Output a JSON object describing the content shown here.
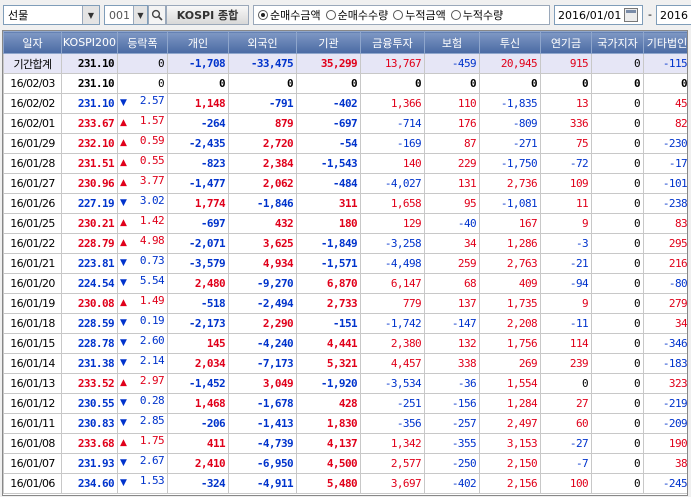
{
  "toolbar": {
    "market": "선물",
    "code": "001",
    "index_name": "KOSPI 종합",
    "radios": [
      {
        "label": "순매수금액",
        "selected": true
      },
      {
        "label": "순매수수량",
        "selected": false
      },
      {
        "label": "누적금액",
        "selected": false
      },
      {
        "label": "누적수량",
        "selected": false
      }
    ],
    "start_date": "2016/01/01",
    "range_sep": "-",
    "end_date": "2016"
  },
  "table": {
    "columns": [
      "일자",
      "KOSPI200",
      "등락폭",
      "개인",
      "외국인",
      "기관",
      "금융투자",
      "보험",
      "투신",
      "연기금",
      "국가지자",
      "기타법인"
    ],
    "rows": [
      {
        "date": "기간합계",
        "index": "231.10",
        "dir": "",
        "change": "0",
        "retail": "-1,708",
        "foreign": "-33,475",
        "inst": "35,299",
        "fin": "13,767",
        "ins": "-459",
        "trust": "20,945",
        "pension": "915",
        "gov": "0",
        "etc": "-115"
      },
      {
        "date": "16/02/03",
        "index": "231.10",
        "dir": "",
        "change": "0",
        "retail": "0",
        "foreign": "0",
        "inst": "0",
        "fin": "0",
        "ins": "0",
        "trust": "0",
        "pension": "0",
        "gov": "0",
        "etc": "0"
      },
      {
        "date": "16/02/02",
        "index": "231.10",
        "dir": "down",
        "change": "2.57",
        "retail": "1,148",
        "foreign": "-791",
        "inst": "-402",
        "fin": "1,366",
        "ins": "110",
        "trust": "-1,835",
        "pension": "13",
        "gov": "0",
        "etc": "45"
      },
      {
        "date": "16/02/01",
        "index": "233.67",
        "dir": "up",
        "change": "1.57",
        "retail": "-264",
        "foreign": "879",
        "inst": "-697",
        "fin": "-714",
        "ins": "176",
        "trust": "-809",
        "pension": "336",
        "gov": "0",
        "etc": "82"
      },
      {
        "date": "16/01/29",
        "index": "232.10",
        "dir": "up",
        "change": "0.59",
        "retail": "-2,435",
        "foreign": "2,720",
        "inst": "-54",
        "fin": "-169",
        "ins": "87",
        "trust": "-271",
        "pension": "75",
        "gov": "0",
        "etc": "-230"
      },
      {
        "date": "16/01/28",
        "index": "231.51",
        "dir": "up",
        "change": "0.55",
        "retail": "-823",
        "foreign": "2,384",
        "inst": "-1,543",
        "fin": "140",
        "ins": "229",
        "trust": "-1,750",
        "pension": "-72",
        "gov": "0",
        "etc": "-17"
      },
      {
        "date": "16/01/27",
        "index": "230.96",
        "dir": "up",
        "change": "3.77",
        "retail": "-1,477",
        "foreign": "2,062",
        "inst": "-484",
        "fin": "-4,027",
        "ins": "131",
        "trust": "2,736",
        "pension": "109",
        "gov": "0",
        "etc": "-101"
      },
      {
        "date": "16/01/26",
        "index": "227.19",
        "dir": "down",
        "change": "3.02",
        "retail": "1,774",
        "foreign": "-1,846",
        "inst": "311",
        "fin": "1,658",
        "ins": "95",
        "trust": "-1,081",
        "pension": "11",
        "gov": "0",
        "etc": "-238"
      },
      {
        "date": "16/01/25",
        "index": "230.21",
        "dir": "up",
        "change": "1.42",
        "retail": "-697",
        "foreign": "432",
        "inst": "180",
        "fin": "129",
        "ins": "-40",
        "trust": "167",
        "pension": "9",
        "gov": "0",
        "etc": "83"
      },
      {
        "date": "16/01/22",
        "index": "228.79",
        "dir": "up",
        "change": "4.98",
        "retail": "-2,071",
        "foreign": "3,625",
        "inst": "-1,849",
        "fin": "-3,258",
        "ins": "34",
        "trust": "1,286",
        "pension": "-3",
        "gov": "0",
        "etc": "295"
      },
      {
        "date": "16/01/21",
        "index": "223.81",
        "dir": "down",
        "change": "0.73",
        "retail": "-3,579",
        "foreign": "4,934",
        "inst": "-1,571",
        "fin": "-4,498",
        "ins": "259",
        "trust": "2,763",
        "pension": "-21",
        "gov": "0",
        "etc": "216"
      },
      {
        "date": "16/01/20",
        "index": "224.54",
        "dir": "down",
        "change": "5.54",
        "retail": "2,480",
        "foreign": "-9,270",
        "inst": "6,870",
        "fin": "6,147",
        "ins": "68",
        "trust": "409",
        "pension": "-94",
        "gov": "0",
        "etc": "-80"
      },
      {
        "date": "16/01/19",
        "index": "230.08",
        "dir": "up",
        "change": "1.49",
        "retail": "-518",
        "foreign": "-2,494",
        "inst": "2,733",
        "fin": "779",
        "ins": "137",
        "trust": "1,735",
        "pension": "9",
        "gov": "0",
        "etc": "279"
      },
      {
        "date": "16/01/18",
        "index": "228.59",
        "dir": "down",
        "change": "0.19",
        "retail": "-2,173",
        "foreign": "2,290",
        "inst": "-151",
        "fin": "-1,742",
        "ins": "-147",
        "trust": "2,208",
        "pension": "-11",
        "gov": "0",
        "etc": "34"
      },
      {
        "date": "16/01/15",
        "index": "228.78",
        "dir": "down",
        "change": "2.60",
        "retail": "145",
        "foreign": "-4,240",
        "inst": "4,441",
        "fin": "2,380",
        "ins": "132",
        "trust": "1,756",
        "pension": "114",
        "gov": "0",
        "etc": "-346"
      },
      {
        "date": "16/01/14",
        "index": "231.38",
        "dir": "down",
        "change": "2.14",
        "retail": "2,034",
        "foreign": "-7,173",
        "inst": "5,321",
        "fin": "4,457",
        "ins": "338",
        "trust": "269",
        "pension": "239",
        "gov": "0",
        "etc": "-183"
      },
      {
        "date": "16/01/13",
        "index": "233.52",
        "dir": "up",
        "change": "2.97",
        "retail": "-1,452",
        "foreign": "3,049",
        "inst": "-1,920",
        "fin": "-3,534",
        "ins": "-36",
        "trust": "1,554",
        "pension": "0",
        "gov": "0",
        "etc": "323"
      },
      {
        "date": "16/01/12",
        "index": "230.55",
        "dir": "down",
        "change": "0.28",
        "retail": "1,468",
        "foreign": "-1,678",
        "inst": "428",
        "fin": "-251",
        "ins": "-156",
        "trust": "1,284",
        "pension": "27",
        "gov": "0",
        "etc": "-219"
      },
      {
        "date": "16/01/11",
        "index": "230.83",
        "dir": "down",
        "change": "2.85",
        "retail": "-206",
        "foreign": "-1,413",
        "inst": "1,830",
        "fin": "-356",
        "ins": "-257",
        "trust": "2,497",
        "pension": "60",
        "gov": "0",
        "etc": "-209"
      },
      {
        "date": "16/01/08",
        "index": "233.68",
        "dir": "up",
        "change": "1.75",
        "retail": "411",
        "foreign": "-4,739",
        "inst": "4,137",
        "fin": "1,342",
        "ins": "-355",
        "trust": "3,153",
        "pension": "-27",
        "gov": "0",
        "etc": "190"
      },
      {
        "date": "16/01/07",
        "index": "231.93",
        "dir": "down",
        "change": "2.67",
        "retail": "2,410",
        "foreign": "-6,950",
        "inst": "4,500",
        "fin": "2,577",
        "ins": "-250",
        "trust": "2,150",
        "pension": "-7",
        "gov": "0",
        "etc": "38"
      },
      {
        "date": "16/01/06",
        "index": "234.60",
        "dir": "down",
        "change": "1.53",
        "retail": "-324",
        "foreign": "-4,911",
        "inst": "5,480",
        "fin": "3,697",
        "ins": "-402",
        "trust": "2,156",
        "pension": "100",
        "gov": "0",
        "etc": "-245"
      }
    ]
  },
  "colors": {
    "up": "#e0001a",
    "down": "#0033cc",
    "header": "#5a78b0",
    "total_row": "#e6e6f6"
  }
}
